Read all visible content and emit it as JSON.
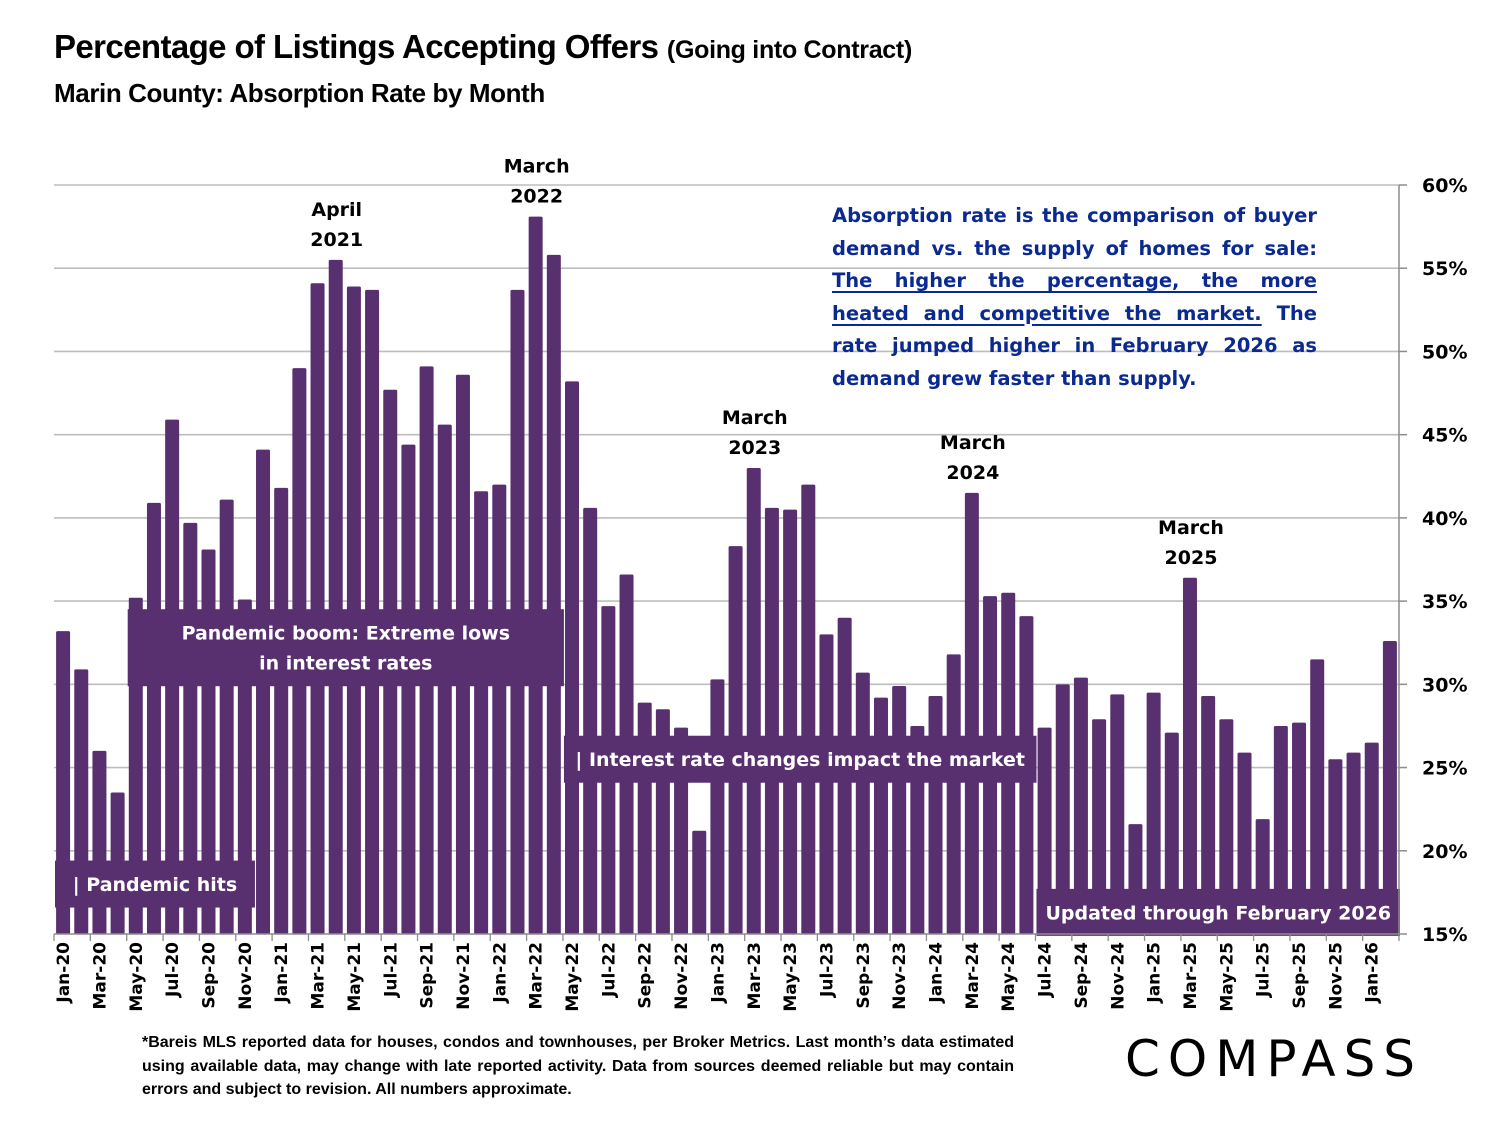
{
  "header": {
    "title_main": "Percentage of Listings Accepting Offers",
    "title_paren": "(Going into Contract)",
    "subtitle": "Marin County:  Absorption Rate by Month"
  },
  "note": {
    "part1": "Absorption rate is the comparison of buyer demand vs. the supply of homes for sale: ",
    "underlined": "The higher the percentage, the more heated and competitive the market.",
    "part2": " The rate jumped higher in February 2026 as demand grew faster than supply.",
    "color": "#0b2a8f"
  },
  "footnote": "*Bareis MLS reported data for houses, condos and townhouses, per Broker Metrics. Last month’s data estimated using available data, may change with late reported activity. Data from sources deemed reliable but may contain errors and subject to revision. All numbers approximate.",
  "logo": "COMPASS",
  "colors": {
    "bar": "#58306f",
    "grid": "#bdbdbd",
    "axis": "#8c8c8c"
  },
  "chart_data": {
    "type": "bar",
    "title": "Percentage of Listings Accepting Offers (Going into Contract)",
    "subtitle": "Marin County: Absorption Rate by Month",
    "xlabel": "",
    "ylabel": "",
    "y_axis_position": "right",
    "ylim": [
      15,
      60
    ],
    "yticks": [
      15,
      20,
      25,
      30,
      35,
      40,
      45,
      50,
      55,
      60
    ],
    "ytick_format": "{v}%",
    "grid": true,
    "categories": [
      "Jan-20",
      "Feb-20",
      "Mar-20",
      "Apr-20",
      "May-20",
      "Jun-20",
      "Jul-20",
      "Aug-20",
      "Sep-20",
      "Oct-20",
      "Nov-20",
      "Dec-20",
      "Jan-21",
      "Feb-21",
      "Mar-21",
      "Apr-21",
      "May-21",
      "Jun-21",
      "Jul-21",
      "Aug-21",
      "Sep-21",
      "Oct-21",
      "Nov-21",
      "Dec-21",
      "Jan-22",
      "Feb-22",
      "Mar-22",
      "Apr-22",
      "May-22",
      "Jun-22",
      "Jul-22",
      "Aug-22",
      "Sep-22",
      "Oct-22",
      "Nov-22",
      "Dec-22",
      "Jan-23",
      "Feb-23",
      "Mar-23",
      "Apr-23",
      "May-23",
      "Jun-23",
      "Jul-23",
      "Aug-23",
      "Sep-23",
      "Oct-23",
      "Nov-23",
      "Dec-23",
      "Jan-24",
      "Feb-24",
      "Mar-24",
      "Apr-24",
      "May-24",
      "Jun-24",
      "Jul-24",
      "Aug-24",
      "Sep-24",
      "Oct-24",
      "Nov-24",
      "Dec-24",
      "Jan-25",
      "Feb-25",
      "Mar-25",
      "Apr-25",
      "May-25",
      "Jun-25",
      "Jul-25",
      "Aug-25",
      "Sep-25",
      "Oct-25",
      "Nov-25",
      "Dec-25",
      "Jan-26",
      "Feb-26"
    ],
    "values": [
      33.2,
      30.9,
      26.0,
      23.5,
      35.2,
      40.9,
      45.9,
      39.7,
      38.1,
      41.1,
      35.1,
      44.1,
      41.8,
      49.0,
      54.1,
      55.5,
      53.9,
      53.7,
      47.7,
      44.4,
      49.1,
      45.6,
      48.6,
      41.6,
      42.0,
      53.7,
      58.1,
      55.8,
      48.2,
      40.6,
      34.7,
      36.6,
      28.9,
      28.5,
      27.4,
      21.2,
      30.3,
      38.3,
      43.0,
      40.6,
      40.5,
      42.0,
      33.0,
      34.0,
      30.7,
      29.2,
      29.9,
      27.5,
      29.3,
      31.8,
      41.5,
      35.3,
      35.5,
      34.1,
      27.4,
      30.0,
      30.4,
      27.9,
      29.4,
      21.6,
      29.5,
      27.1,
      36.4,
      29.3,
      27.9,
      25.9,
      21.9,
      27.5,
      27.7,
      31.5,
      25.5,
      25.9,
      26.5,
      32.6
    ],
    "xtick_labels_every": 2,
    "annotations": [
      {
        "lines": [
          "April",
          "2021"
        ],
        "category": "Apr-21"
      },
      {
        "lines": [
          "March",
          "2022"
        ],
        "category": "Mar-22"
      },
      {
        "lines": [
          "March",
          "2023"
        ],
        "category": "Mar-23"
      },
      {
        "lines": [
          "March",
          "2024"
        ],
        "category": "Mar-24"
      },
      {
        "lines": [
          "March",
          "2025"
        ],
        "category": "Mar-25"
      }
    ],
    "bands": [
      {
        "lines": [
          "| Pandemic hits"
        ],
        "from": "Jan-20",
        "to": "Nov-20",
        "level": 18
      },
      {
        "lines": [
          "Pandemic boom: Extreme lows",
          "in interest rates"
        ],
        "from": "May-20",
        "to": "Apr-22",
        "level": 32.2
      },
      {
        "lines": [
          "| Interest rate changes impact the market"
        ],
        "from": "May-22",
        "to": "Jun-24",
        "level": 25.5
      },
      {
        "lines": [
          "Updated through February 2026"
        ],
        "from": "Jul-24",
        "to": "Feb-26",
        "level": 16.3
      }
    ]
  }
}
